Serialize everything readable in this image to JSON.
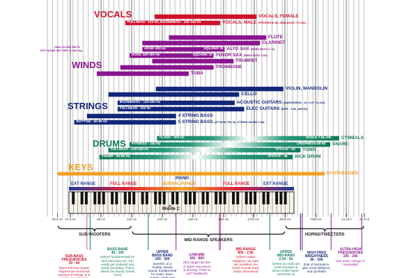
{
  "sections": [
    {
      "label": "VOCALS",
      "color": "#d0102a"
    },
    {
      "label": "WINDS",
      "color": "#8a1590"
    },
    {
      "label": "STRINGS",
      "color": "#13267a"
    },
    {
      "label": "DRUMS",
      "color": "#127a5a"
    },
    {
      "label": "KEYS",
      "color": "#f0a020"
    }
  ],
  "bars": [
    {
      "sec": 0,
      "lo": 185,
      "hi": 1850,
      "label": "VOCALS, FEMALE",
      "note": "",
      "inner": []
    },
    {
      "sec": 0,
      "lo": 95,
      "hi": 815,
      "label": "VOCALS, MALE",
      "note": "(PRESENCE 5k, SIBILANCE 7.5-10k)",
      "inner": [
        "FULLNESS - 120 Hz, BOOMINESS - 200-240 Hz"
      ]
    },
    {
      "sec": 1,
      "lo": 255,
      "hi": 2300,
      "label": "FLUTE",
      "note": "",
      "inner": []
    },
    {
      "sec": 1,
      "lo": 140,
      "hi": 2000,
      "label": "CLARINET",
      "note": "",
      "inner": []
    },
    {
      "sec": 1,
      "lo": 140,
      "hi": 900,
      "label": "ALTO SAX",
      "note": "(REED BUZZ 6-7k)",
      "inner": [
        "HONK 400 Hz",
        "SQUAWK 2k"
      ]
    },
    {
      "sec": 1,
      "lo": 105,
      "hi": 700,
      "label": "TENOR SAX",
      "note": "(REED BUZZ 5-6k)",
      "inner": [
        "HONK 250-300 Hz",
        "SQUAWK 1k"
      ]
    },
    {
      "sec": 1,
      "lo": 175,
      "hi": 1100,
      "label": "TRUMPET",
      "note": "",
      "inner": []
    },
    {
      "sec": 1,
      "lo": 85,
      "hi": 700,
      "label": "TROMBONE",
      "note": "",
      "inner": []
    },
    {
      "sec": 1,
      "lo": 50,
      "hi": 400,
      "label": "TUBA",
      "note": "",
      "inner": []
    },
    {
      "sec": 2,
      "lo": 190,
      "hi": 3400,
      "label": "VIOLIN, MANDOLIN",
      "note": "",
      "inner": []
    },
    {
      "sec": 2,
      "lo": 65,
      "hi": 1250,
      "label": "CELLO",
      "note": "",
      "inner": []
    },
    {
      "sec": 2,
      "lo": 80,
      "hi": 1130,
      "label": "ACOUSTIC GUITARS",
      "note": "(HARSHNESS - 2k, CUT 7k-10k)",
      "inner": [
        "BOOMINESS - 120-200 Hz"
      ]
    },
    {
      "sec": 2,
      "lo": 80,
      "hi": 1400,
      "label": "ELEC GUITARS",
      "note": "(BITE - 2.5k, AIR 8k)",
      "inner": [
        "FULLNESS - 240 Hz"
      ]
    },
    {
      "sec": 2,
      "lo": 40,
      "hi": 300,
      "label": "4 STRING BASS",
      "note": "",
      "inner": []
    },
    {
      "sec": 2,
      "lo": 30,
      "hi": 300,
      "label": "5 STRING BASS",
      "note": "(ATTACK 700-1k, STRING NOISE 2.5k)",
      "inner": [
        "BOTTOM - 60-80 Hz"
      ]
    },
    {
      "sec": 3,
      "lo": 195,
      "hi": 12000,
      "label": "CYMBALS",
      "note": "",
      "inner": [
        "CLANK - 200 Hz",
        "SIZZLE 7.5k-10k"
      ]
    },
    {
      "sec": 3,
      "lo": 105,
      "hi": 9800,
      "label": "SNARE",
      "note": "",
      "inner": [
        "FATNESS - 240 Hz",
        "CRISPNESS 5k-8k"
      ]
    },
    {
      "sec": 3,
      "lo": 65,
      "hi": 5000,
      "label": "TOMS",
      "note": "",
      "inner": [
        "FULLNESS - 120-240 Hz",
        "ATTACK - 5k"
      ]
    },
    {
      "sec": 3,
      "lo": 53,
      "hi": 4200,
      "label": "KICK DRUM",
      "note": "",
      "inner": [
        "THUMP - 60-80 Hz",
        "ATTACK - 4k"
      ]
    },
    {
      "sec": 4,
      "lo": 20.6,
      "hi": 8600,
      "label": "SYNTHESIZER",
      "note": "",
      "inner": []
    }
  ],
  "sax_note": [
    "(SAX CLOSE MIC'D",
    "KEY NOISE SET HPF @ 200 Hz)"
  ],
  "piano": {
    "label": "PIANO",
    "ranges": [
      "EXT RANGE",
      "FULL RANGE",
      "NORMAL RANGE",
      "FULL RANGE",
      "EXT RANGE"
    ],
    "range_colors": [
      "#1f3a9a",
      "#e0203a",
      "#f0a020",
      "#e0203a",
      "#1f3a9a"
    ],
    "middle_c": "Middle C",
    "lo": 27.5,
    "hi": 4186
  },
  "axis": {
    "scale": "log2",
    "ticks": [
      {
        "f": 20.6,
        "t": "20.6 Hz"
      },
      {
        "f": 27.5,
        "t": "27.5 Hz"
      },
      {
        "f": 55,
        "t": "55 Hz"
      },
      {
        "f": 110,
        "t": "110 Hz"
      },
      {
        "f": 220,
        "t": "220 Hz"
      },
      {
        "f": 440,
        "t": "440 Hz"
      },
      {
        "f": 880,
        "t": "880 Hz"
      },
      {
        "f": 1720,
        "t": "1720 Hz"
      },
      {
        "f": 3540,
        "t": "3540 Hz"
      },
      {
        "f": 7080,
        "t": "7080 Hz"
      },
      {
        "f": 14160,
        "t": "14.16 k"
      },
      {
        "f": 21240,
        "t": "21.24 k"
      }
    ]
  },
  "speakers": [
    {
      "label": "SUB-WOOFERS",
      "lo": 20.6,
      "hi": 110
    },
    {
      "label": "MID-RANGE SPEAKERS",
      "lo": 110,
      "hi": 3540
    },
    {
      "label": "HORNS/TWEETERS",
      "lo": 3540,
      "hi": 21240
    }
  ],
  "bands": [
    {
      "title": [
        "SUB-BASS",
        "FREQUENCIES",
        "20 - 40"
      ],
      "desc": "(More felt than heard, requires an enormous amount of energy, & is quickly transducers)",
      "color": "#d0102a",
      "f": 30
    },
    {
      "title": [
        "BASS BAND",
        "40 - 160"
      ],
      "desc": "(where fundamentals for kick and bass are, can easily get cluttered and woofy sounding. This is where the thump comes from)",
      "color": "#127a5a",
      "f": 80
    },
    {
      "title": [
        "UPPER",
        "BASS BAND",
        "160 - 300"
      ],
      "desc": "(warmth, or a muddy, woody sound, fundamental for snare, toms, guitars, male vox)",
      "color": "#13267a",
      "f": 220
    },
    {
      "title": [
        "LOW-MID",
        "300 - 800"
      ],
      "desc": "(this range has lots of upper resonance & droning. Think of AGT feedback)",
      "color": "#8a1590",
      "f": 480
    },
    {
      "title": [
        "MID RANGE",
        "800 - 2.5k"
      ],
      "desc": "(where clutter happens, our ears are sensitive, too much sounds hard, nasal, obnoxious)",
      "color": "#d0102a",
      "f": 1450
    },
    {
      "title": [
        "UPPER",
        "MID-BAND",
        "2.5k - 5k"
      ],
      "desc": "(where our ears are most sensitive & where brittle harsh, screechie is)",
      "color": "#127a5a",
      "f": 3600
    },
    {
      "title": [
        "HIGH FREQ",
        "BRIGHTNESS",
        "5k - 10k"
      ],
      "desc": "(lots of harmonics, plus vocal sibilance, and cymbals)",
      "color": "#13267a",
      "f": 7200
    },
    {
      "title": [
        "ULTRA-HIGH",
        "FREQUENCIES",
        "10k - 20k"
      ],
      "desc": "(not much energy or musicality)",
      "color": "#8a1590",
      "f": 15500
    }
  ]
}
